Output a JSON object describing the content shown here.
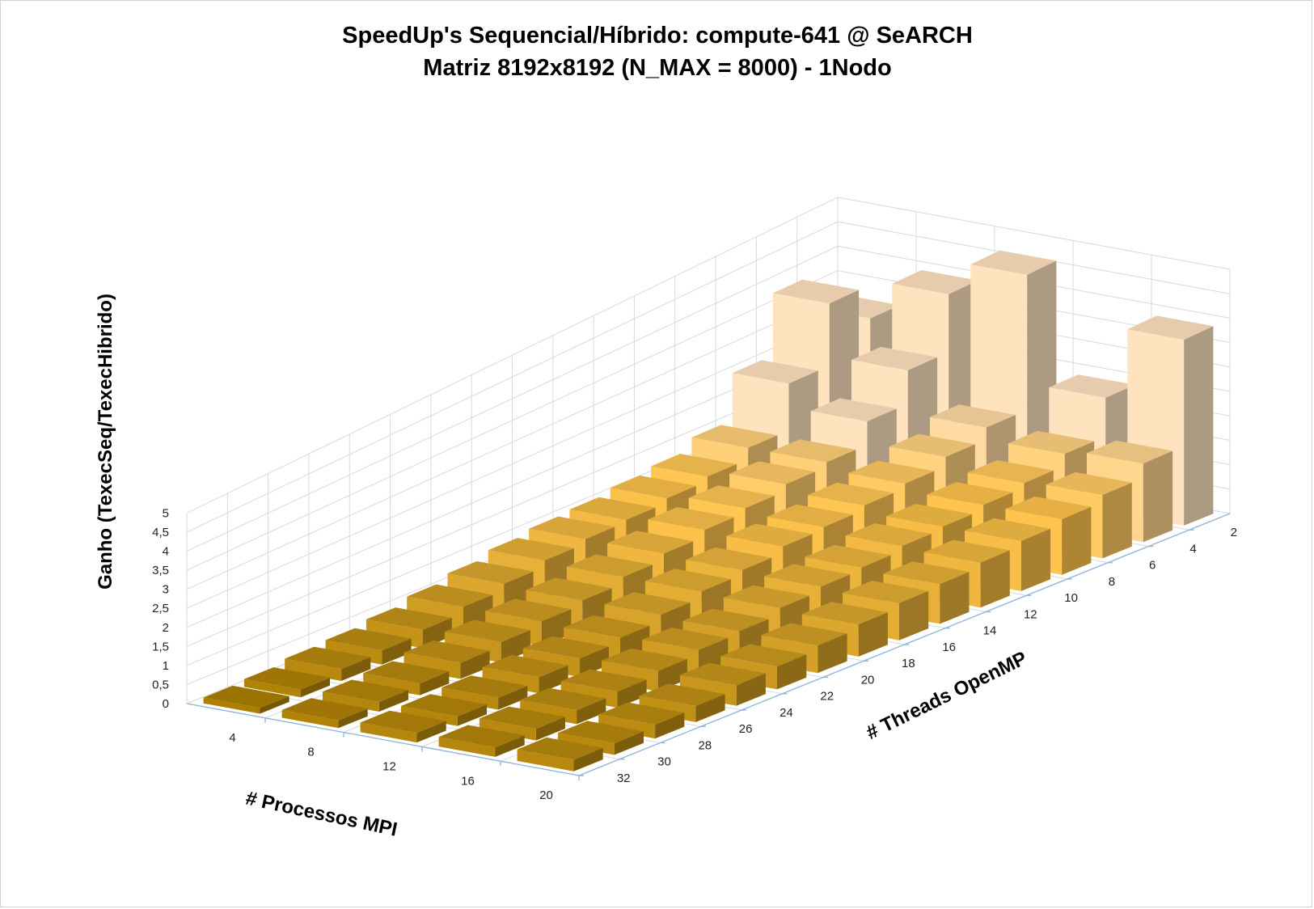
{
  "chart_data": {
    "type": "bar3d",
    "title": "SpeedUp's Sequencial/Híbrido: compute-641 @ SeARCH",
    "subtitle": "Matriz 8192x8192 (N_MAX = 8000) - 1Nodo",
    "ylabel": "Ganho (TexecSeq/TexecHibrido)",
    "x_axis_label": "# Processos MPI",
    "z_axis_label": "# Threads OpenMP",
    "y_ticks": [
      "0",
      "0,5",
      "1",
      "1,5",
      "2",
      "2,5",
      "3",
      "3,5",
      "4",
      "4,5",
      "5"
    ],
    "ylim": [
      0,
      5
    ],
    "mpi": [
      4,
      8,
      12,
      16,
      20
    ],
    "threads": [
      2,
      4,
      6,
      8,
      10,
      12,
      14,
      16,
      18,
      20,
      22,
      24,
      26,
      28,
      30,
      32
    ],
    "values": {
      "4": [
        3.1,
        3.8,
        2.5,
        1.5,
        1.25,
        1.15,
        1.05,
        1.0,
        0.9,
        0.75,
        0.6,
        0.45,
        0.35,
        0.3,
        0.2,
        0.15
      ],
      "8": [
        3.9,
        2.7,
        2.0,
        1.5,
        1.4,
        1.25,
        1.15,
        1.0,
        0.85,
        0.7,
        0.6,
        0.5,
        0.4,
        0.3,
        0.25,
        0.2
      ],
      "12": [
        4.6,
        1.8,
        1.55,
        1.35,
        1.25,
        1.15,
        1.1,
        0.95,
        0.85,
        0.7,
        0.55,
        0.45,
        0.4,
        0.3,
        0.25,
        0.25
      ],
      "16": [
        2.35,
        1.55,
        1.3,
        1.2,
        1.1,
        1.05,
        0.95,
        0.9,
        0.8,
        0.65,
        0.6,
        0.5,
        0.4,
        0.35,
        0.3,
        0.25
      ],
      "20": [
        3.85,
        1.65,
        1.35,
        1.2,
        1.1,
        1.0,
        0.9,
        0.85,
        0.75,
        0.65,
        0.55,
        0.5,
        0.4,
        0.35,
        0.3,
        0.3
      ]
    },
    "colors": {
      "light": "#ffe3bf",
      "mid": "#ffc44d",
      "dark": "#a87c00"
    },
    "grid": true
  }
}
